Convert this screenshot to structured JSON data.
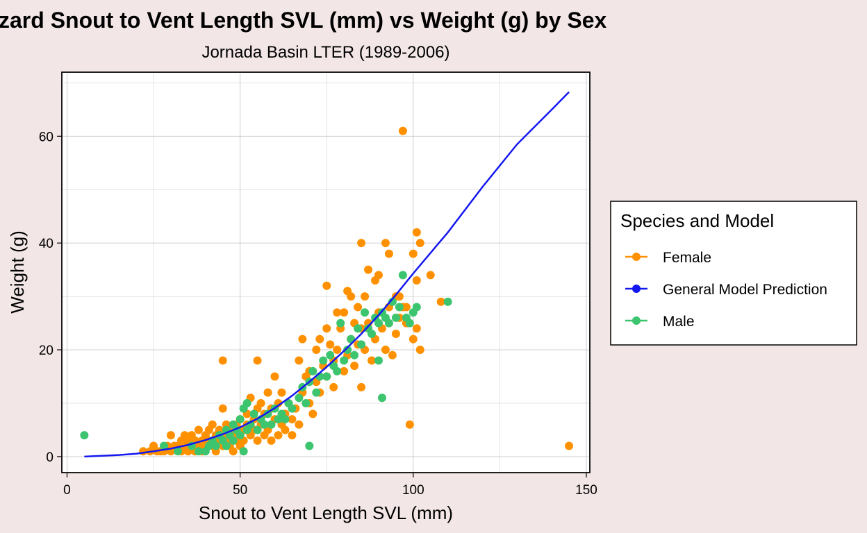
{
  "colors": {
    "background": "#f2e6e6",
    "panel": "#ffffff",
    "grid": "#c8c8c8",
    "female": "#ff9100",
    "male": "#3cc46e",
    "model": "#1418f0"
  },
  "chart_data": {
    "type": "scatter",
    "title": "zard Snout to Vent Length SVL (mm) vs Weight (g) by Sex",
    "subtitle": "Jornada Basin LTER (1989-2006)",
    "xlabel": "Snout to Vent Length SVL (mm)",
    "ylabel": "Weight (g)",
    "xlim": [
      -1.5,
      151
    ],
    "ylim": [
      -3,
      72
    ],
    "x_ticks": [
      0,
      50,
      100,
      150
    ],
    "y_ticks": [
      0,
      20,
      40,
      60
    ],
    "x_tick_labels": [
      "0",
      "50",
      "100",
      "150"
    ],
    "y_tick_labels": [
      "0",
      "20",
      "40",
      "60"
    ],
    "x_minor_grid": [
      25,
      75,
      125
    ],
    "y_minor_grid": [
      10,
      30,
      50,
      70
    ],
    "grid": true,
    "legend": {
      "title": "Species and Model",
      "placement": "right",
      "entries": [
        {
          "label": "Female",
          "color": "#ff9100"
        },
        {
          "label": "General Model Prediction",
          "color": "#1418f0"
        },
        {
          "label": "Male",
          "color": "#3cc46e"
        }
      ]
    },
    "series": [
      {
        "name": "Female",
        "kind": "points",
        "color": "#ff9100",
        "points": [
          [
            22,
            1
          ],
          [
            24,
            1
          ],
          [
            25,
            2
          ],
          [
            26,
            1
          ],
          [
            27,
            1
          ],
          [
            28,
            1
          ],
          [
            29,
            2
          ],
          [
            30,
            4
          ],
          [
            30,
            1
          ],
          [
            31,
            2
          ],
          [
            32,
            2
          ],
          [
            33,
            1
          ],
          [
            33,
            3
          ],
          [
            34,
            2
          ],
          [
            34,
            4
          ],
          [
            35,
            3
          ],
          [
            35,
            1
          ],
          [
            36,
            2
          ],
          [
            36,
            4
          ],
          [
            37,
            3
          ],
          [
            37,
            1
          ],
          [
            38,
            2
          ],
          [
            38,
            5
          ],
          [
            39,
            3
          ],
          [
            39,
            1
          ],
          [
            40,
            4
          ],
          [
            40,
            2
          ],
          [
            41,
            5
          ],
          [
            41,
            3
          ],
          [
            42,
            6
          ],
          [
            42,
            2
          ],
          [
            43,
            4
          ],
          [
            43,
            1
          ],
          [
            44,
            3
          ],
          [
            44,
            5
          ],
          [
            45,
            4
          ],
          [
            45,
            2
          ],
          [
            45,
            9
          ],
          [
            45,
            18
          ],
          [
            46,
            3
          ],
          [
            46,
            6
          ],
          [
            47,
            2
          ],
          [
            47,
            5
          ],
          [
            48,
            4
          ],
          [
            48,
            1
          ],
          [
            49,
            3
          ],
          [
            49,
            6
          ],
          [
            50,
            4
          ],
          [
            50,
            2
          ],
          [
            50,
            7
          ],
          [
            51,
            5
          ],
          [
            51,
            3
          ],
          [
            52,
            6
          ],
          [
            52,
            8
          ],
          [
            53,
            4
          ],
          [
            53,
            11
          ],
          [
            54,
            5
          ],
          [
            54,
            7
          ],
          [
            55,
            18
          ],
          [
            55,
            3
          ],
          [
            55,
            9
          ],
          [
            56,
            6
          ],
          [
            56,
            10
          ],
          [
            57,
            4
          ],
          [
            57,
            8
          ],
          [
            58,
            12
          ],
          [
            58,
            5
          ],
          [
            59,
            9
          ],
          [
            59,
            3
          ],
          [
            60,
            15
          ],
          [
            60,
            7
          ],
          [
            61,
            10
          ],
          [
            61,
            4
          ],
          [
            62,
            6
          ],
          [
            62,
            12
          ],
          [
            63,
            8
          ],
          [
            63,
            5
          ],
          [
            64,
            10
          ],
          [
            65,
            4
          ],
          [
            65,
            7
          ],
          [
            66,
            9
          ],
          [
            67,
            6
          ],
          [
            67,
            18
          ],
          [
            68,
            12
          ],
          [
            68,
            22
          ],
          [
            69,
            15
          ],
          [
            70,
            10
          ],
          [
            70,
            16
          ],
          [
            71,
            8
          ],
          [
            72,
            14
          ],
          [
            72,
            20
          ],
          [
            73,
            22
          ],
          [
            73,
            12
          ],
          [
            74,
            17
          ],
          [
            75,
            24
          ],
          [
            75,
            32
          ],
          [
            75,
            15
          ],
          [
            76,
            21
          ],
          [
            77,
            18
          ],
          [
            77,
            13
          ],
          [
            78,
            27
          ],
          [
            78,
            20
          ],
          [
            79,
            24
          ],
          [
            80,
            27
          ],
          [
            80,
            16
          ],
          [
            81,
            31
          ],
          [
            81,
            19
          ],
          [
            82,
            30
          ],
          [
            82,
            22
          ],
          [
            83,
            25
          ],
          [
            83,
            17
          ],
          [
            84,
            28
          ],
          [
            84,
            21
          ],
          [
            85,
            40
          ],
          [
            85,
            24
          ],
          [
            85,
            13
          ],
          [
            86,
            30
          ],
          [
            86,
            20
          ],
          [
            87,
            35
          ],
          [
            87,
            25
          ],
          [
            88,
            18
          ],
          [
            89,
            33
          ],
          [
            89,
            22
          ],
          [
            90,
            27
          ],
          [
            90,
            34
          ],
          [
            91,
            24
          ],
          [
            92,
            40
          ],
          [
            92,
            20
          ],
          [
            93,
            38
          ],
          [
            93,
            28
          ],
          [
            94,
            19
          ],
          [
            95,
            23
          ],
          [
            95,
            30
          ],
          [
            96,
            26
          ],
          [
            96,
            30
          ],
          [
            97,
            61
          ],
          [
            97,
            28
          ],
          [
            98,
            28
          ],
          [
            98,
            25
          ],
          [
            99,
            6
          ],
          [
            100,
            38
          ],
          [
            100,
            22
          ],
          [
            101,
            42
          ],
          [
            101,
            33
          ],
          [
            101,
            24
          ],
          [
            102,
            40
          ],
          [
            102,
            20
          ],
          [
            105,
            34
          ],
          [
            108,
            29
          ],
          [
            145,
            2
          ]
        ]
      },
      {
        "name": "Male",
        "kind": "points",
        "color": "#3cc46e",
        "points": [
          [
            5,
            4
          ],
          [
            28,
            2
          ],
          [
            32,
            1
          ],
          [
            36,
            2
          ],
          [
            38,
            1
          ],
          [
            40,
            1
          ],
          [
            41,
            2
          ],
          [
            42,
            3
          ],
          [
            43,
            2
          ],
          [
            44,
            4
          ],
          [
            45,
            3
          ],
          [
            46,
            5
          ],
          [
            46,
            2
          ],
          [
            47,
            4
          ],
          [
            48,
            6
          ],
          [
            48,
            3
          ],
          [
            49,
            5
          ],
          [
            50,
            7
          ],
          [
            50,
            4
          ],
          [
            51,
            9
          ],
          [
            51,
            1
          ],
          [
            52,
            10
          ],
          [
            52,
            5
          ],
          [
            53,
            6
          ],
          [
            54,
            8
          ],
          [
            55,
            5
          ],
          [
            56,
            7
          ],
          [
            57,
            6
          ],
          [
            58,
            8
          ],
          [
            59,
            6
          ],
          [
            60,
            9
          ],
          [
            61,
            7
          ],
          [
            62,
            8
          ],
          [
            63,
            7
          ],
          [
            64,
            10
          ],
          [
            65,
            9
          ],
          [
            67,
            11
          ],
          [
            68,
            13
          ],
          [
            69,
            10
          ],
          [
            70,
            2
          ],
          [
            70,
            14
          ],
          [
            71,
            16
          ],
          [
            72,
            12
          ],
          [
            73,
            15
          ],
          [
            74,
            18
          ],
          [
            75,
            15
          ],
          [
            76,
            19
          ],
          [
            77,
            17
          ],
          [
            78,
            16
          ],
          [
            79,
            25
          ],
          [
            80,
            18
          ],
          [
            81,
            20
          ],
          [
            82,
            22
          ],
          [
            83,
            19
          ],
          [
            84,
            24
          ],
          [
            85,
            21
          ],
          [
            86,
            27
          ],
          [
            87,
            24
          ],
          [
            88,
            23
          ],
          [
            89,
            26
          ],
          [
            90,
            25
          ],
          [
            90,
            18
          ],
          [
            91,
            11
          ],
          [
            91,
            27
          ],
          [
            92,
            26
          ],
          [
            93,
            25
          ],
          [
            94,
            29
          ],
          [
            95,
            26
          ],
          [
            96,
            28
          ],
          [
            97,
            34
          ],
          [
            98,
            26
          ],
          [
            99,
            25
          ],
          [
            100,
            27
          ],
          [
            101,
            28
          ],
          [
            110,
            29
          ]
        ]
      },
      {
        "name": "General Model Prediction",
        "kind": "line",
        "color": "#1418f0",
        "points": [
          [
            5,
            0
          ],
          [
            10,
            0.15
          ],
          [
            15,
            0.3
          ],
          [
            20,
            0.55
          ],
          [
            25,
            1.0
          ],
          [
            30,
            1.5
          ],
          [
            35,
            2.2
          ],
          [
            40,
            3.1
          ],
          [
            45,
            4.2
          ],
          [
            50,
            5.5
          ],
          [
            55,
            7.1
          ],
          [
            60,
            9.1
          ],
          [
            65,
            11.4
          ],
          [
            70,
            14.0
          ],
          [
            75,
            16.8
          ],
          [
            80,
            19.8
          ],
          [
            85,
            23.0
          ],
          [
            90,
            26.5
          ],
          [
            95,
            30.3
          ],
          [
            100,
            34.3
          ],
          [
            110,
            42.0
          ],
          [
            120,
            50.5
          ],
          [
            130,
            58.5
          ],
          [
            140,
            65.0
          ],
          [
            145,
            68.3
          ]
        ]
      }
    ]
  }
}
